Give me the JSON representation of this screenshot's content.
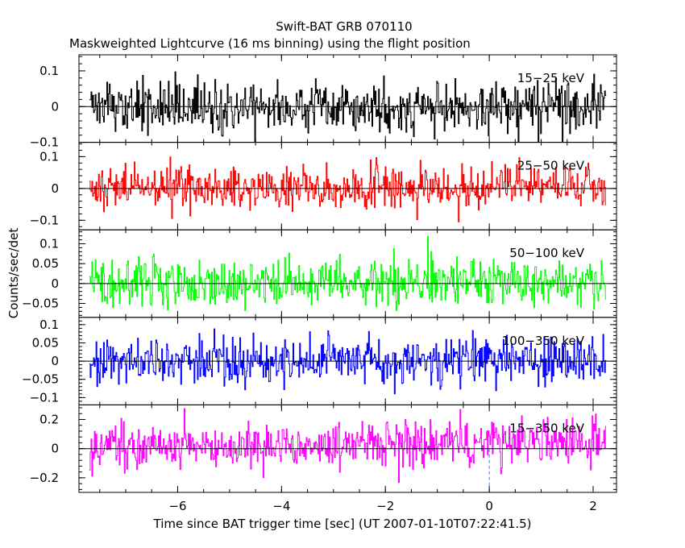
{
  "chart_data": {
    "type": "line",
    "title": "Swift-BAT GRB 070110",
    "subtitle": "Maskweighted Lightcurve (16 ms binning) using the flight position",
    "xlabel": "Time since BAT trigger time [sec] (UT 2007-01-10T07:22:41.5)",
    "ylabel": "Counts/sec/det",
    "xlim": [
      -7.9,
      2.45
    ],
    "x_ticks": [
      -6,
      -4,
      -2,
      0,
      2
    ],
    "x_tick_labels": [
      "−6",
      "−4",
      "−2",
      "0",
      "2"
    ],
    "time_range": [
      -7.7,
      2.25
    ],
    "bin_width_sec": 0.016,
    "trigger_marker_x": 0,
    "grid": false,
    "panels": [
      {
        "name": "15−25 keV",
        "color": "#000000",
        "ylim": [
          -0.1,
          0.145
        ],
        "y_ticks": [
          -0.1,
          0,
          0.1
        ],
        "y_tick_labels": [
          "−0.1",
          "0",
          "0.1"
        ],
        "noise_sigma": 0.035,
        "baseline": 0.0,
        "trend_end": 0.0
      },
      {
        "name": "25−50 keV",
        "color": "#ff0000",
        "ylim": [
          -0.13,
          0.145
        ],
        "y_ticks": [
          -0.1,
          0,
          0.1
        ],
        "y_tick_labels": [
          "−0.1",
          "0",
          "0.1"
        ],
        "noise_sigma": 0.035,
        "baseline": 0.0,
        "trend_end": 0.005
      },
      {
        "name": "50−100 keV",
        "color": "#00ff00",
        "ylim": [
          -0.085,
          0.135
        ],
        "y_ticks": [
          -0.05,
          0,
          0.05,
          0.1
        ],
        "y_tick_labels": [
          "−0.05",
          "0",
          "0.05",
          "0.1"
        ],
        "noise_sigma": 0.03,
        "baseline": 0.0,
        "trend_end": 0.005
      },
      {
        "name": "100−350 keV",
        "color": "#0000ff",
        "ylim": [
          -0.12,
          0.12
        ],
        "y_ticks": [
          -0.1,
          -0.05,
          0,
          0.05,
          0.1
        ],
        "y_tick_labels": [
          "−0.1",
          "−0.05",
          "0",
          "0.05",
          "0.1"
        ],
        "noise_sigma": 0.032,
        "baseline": 0.0,
        "trend_end": 0.0
      },
      {
        "name": "15−350 keV",
        "color": "#ff00ff",
        "ylim": [
          -0.3,
          0.3
        ],
        "y_ticks": [
          -0.2,
          0,
          0.2
        ],
        "y_tick_labels": [
          "−0.2",
          "0",
          "0.2"
        ],
        "noise_sigma": 0.075,
        "baseline": 0.0,
        "trend_end": 0.05
      }
    ]
  }
}
